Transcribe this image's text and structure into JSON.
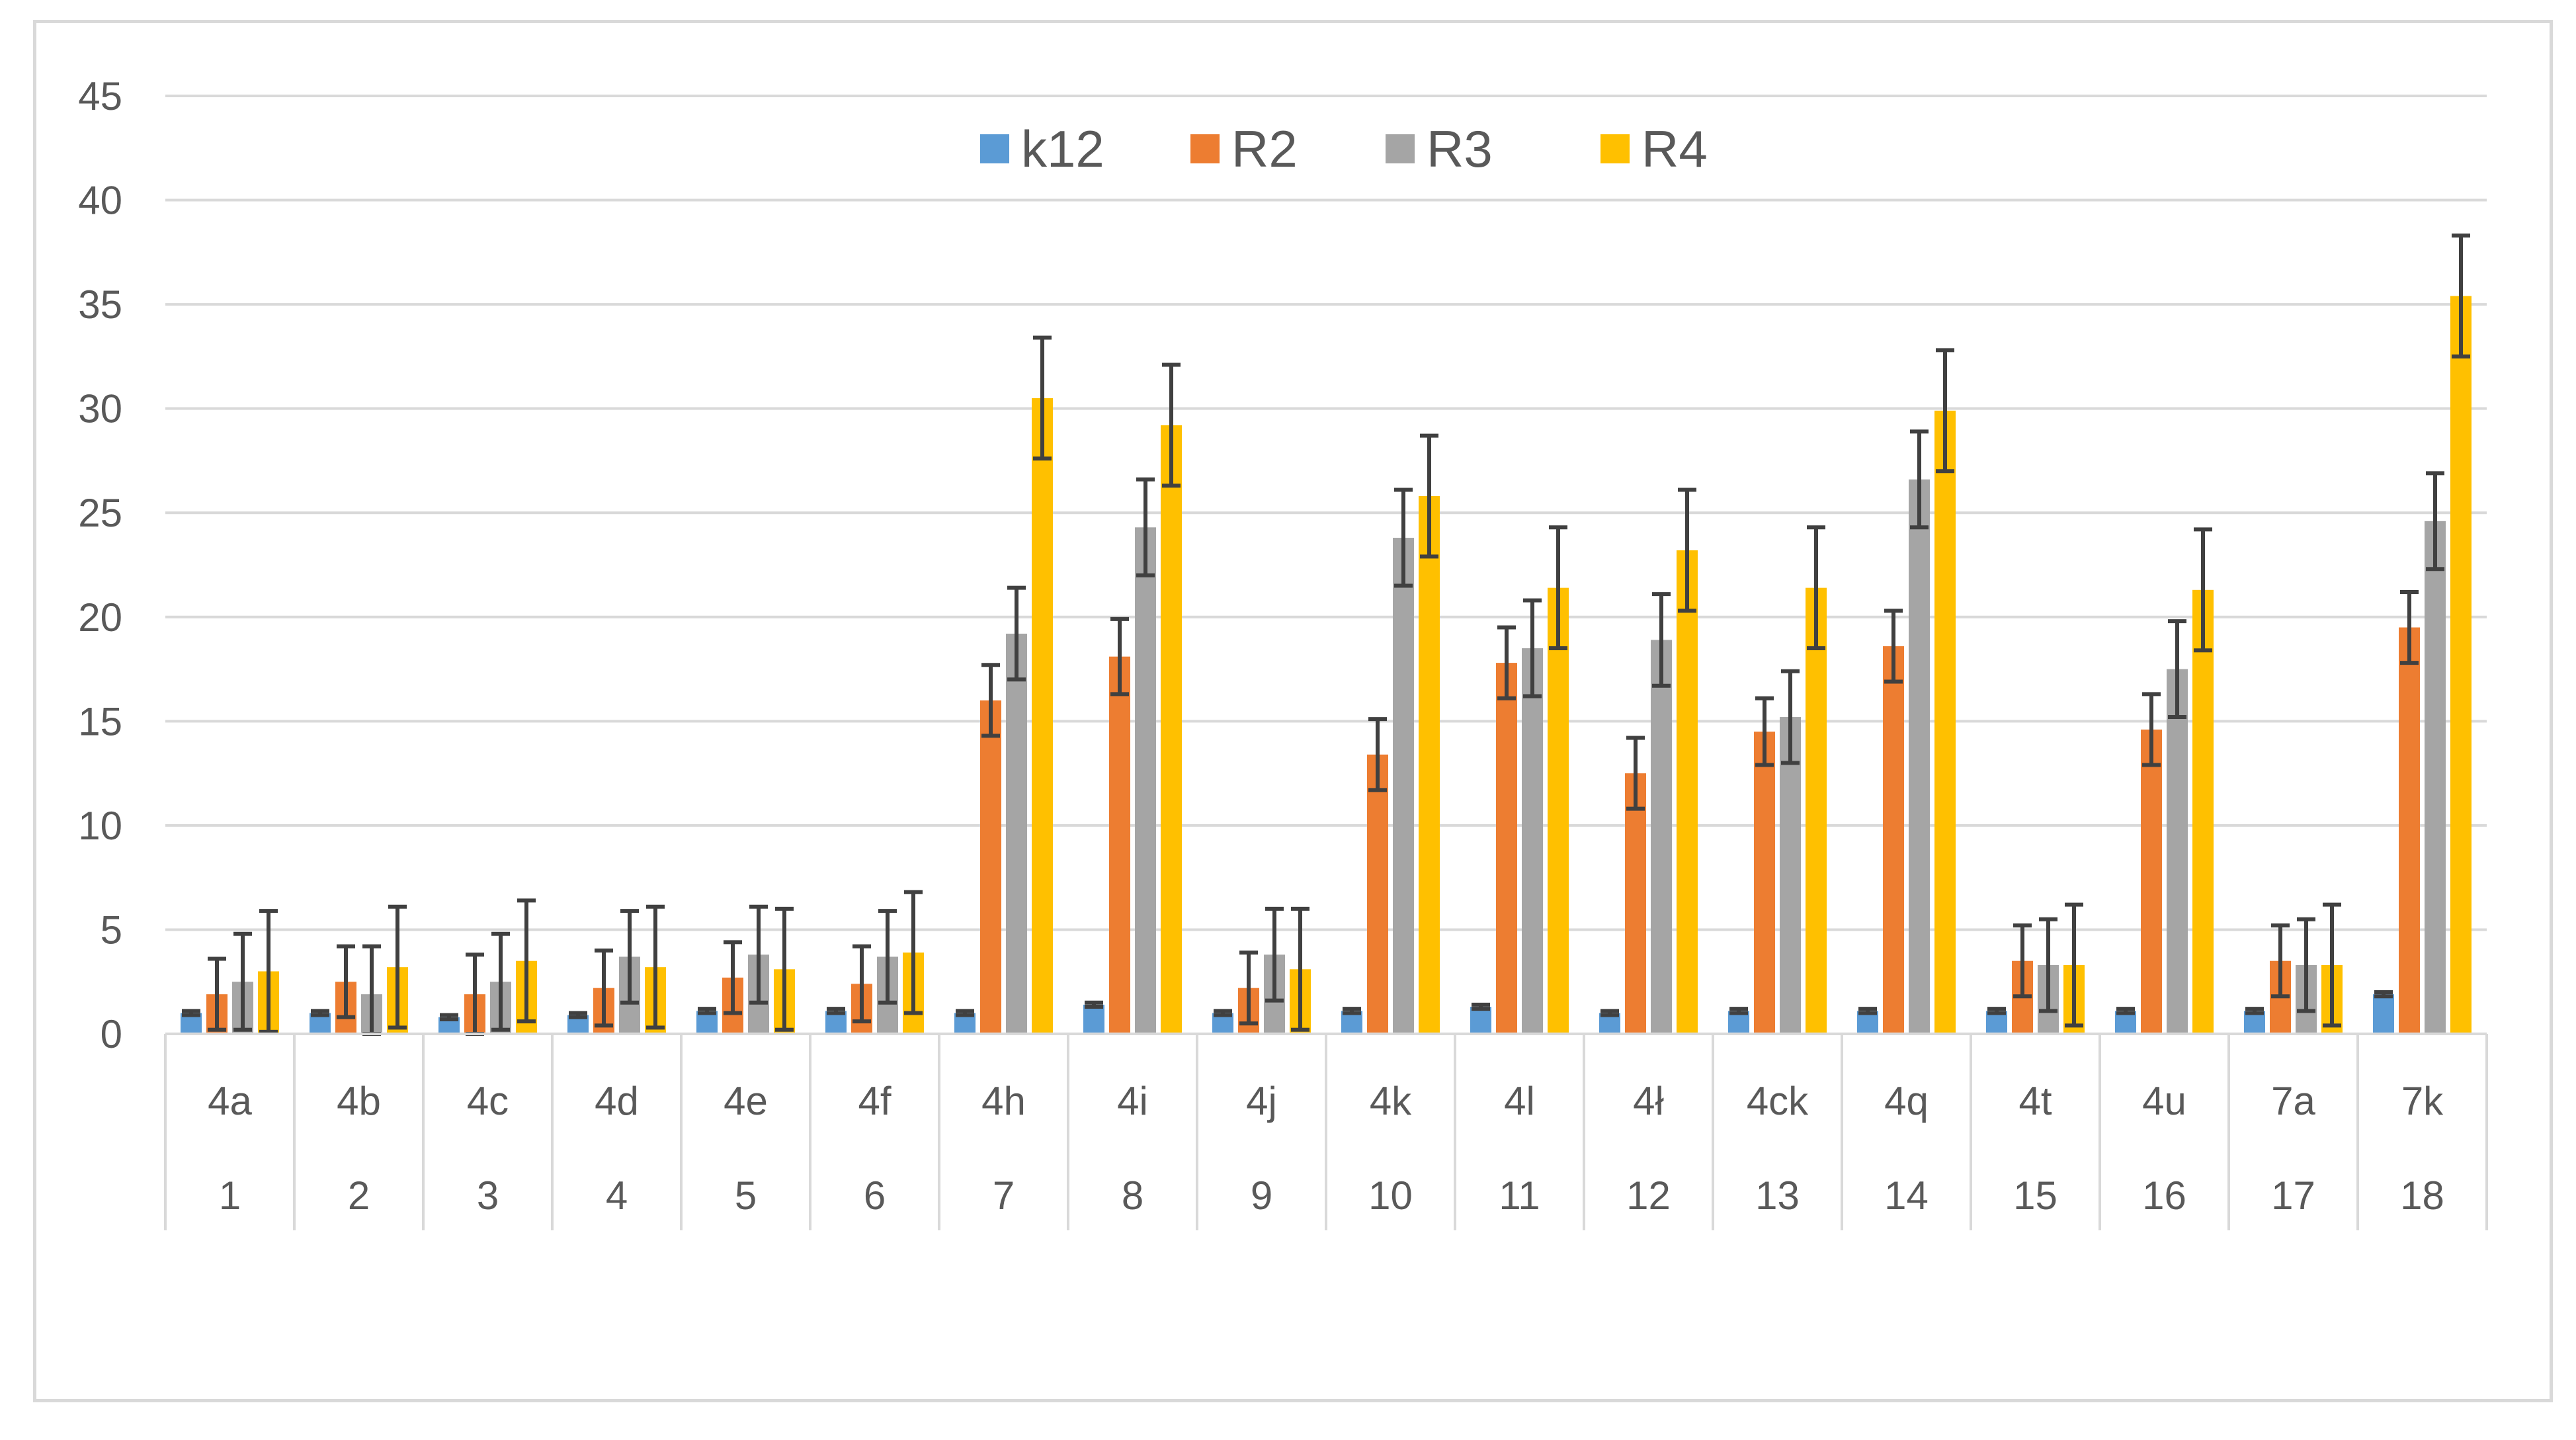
{
  "chart_data": {
    "type": "bar",
    "title": "",
    "xlabel": "",
    "ylabel": "",
    "ylim": [
      0,
      45
    ],
    "yticks": [
      0,
      5,
      10,
      15,
      20,
      25,
      30,
      35,
      40,
      45
    ],
    "grid": true,
    "legend_position": "top-center",
    "categories": [
      {
        "label": "4a",
        "index": "1"
      },
      {
        "label": "4b",
        "index": "2"
      },
      {
        "label": "4c",
        "index": "3"
      },
      {
        "label": "4d",
        "index": "4"
      },
      {
        "label": "4e",
        "index": "5"
      },
      {
        "label": "4f",
        "index": "6"
      },
      {
        "label": "4h",
        "index": "7"
      },
      {
        "label": "4i",
        "index": "8"
      },
      {
        "label": "4j",
        "index": "9"
      },
      {
        "label": "4k",
        "index": "10"
      },
      {
        "label": "4l",
        "index": "11"
      },
      {
        "label": "4ł",
        "index": "12"
      },
      {
        "label": "4ck",
        "index": "13"
      },
      {
        "label": "4q",
        "index": "14"
      },
      {
        "label": "4t",
        "index": "15"
      },
      {
        "label": "4u",
        "index": "16"
      },
      {
        "label": "7a",
        "index": "17"
      },
      {
        "label": "7k",
        "index": "18"
      }
    ],
    "series": [
      {
        "name": "k12",
        "color": "#5b9bd5",
        "values": [
          1.0,
          1.0,
          0.8,
          0.9,
          1.1,
          1.1,
          1.0,
          1.4,
          1.0,
          1.1,
          1.3,
          1.0,
          1.1,
          1.1,
          1.1,
          1.1,
          1.1,
          1.9
        ],
        "errors": [
          0.1,
          0.1,
          0.1,
          0.1,
          0.1,
          0.1,
          0.1,
          0.1,
          0.1,
          0.1,
          0.1,
          0.1,
          0.1,
          0.1,
          0.1,
          0.1,
          0.1,
          0.1
        ]
      },
      {
        "name": "R2",
        "color": "#ed7d31",
        "values": [
          1.9,
          2.5,
          1.9,
          2.2,
          2.7,
          2.4,
          16.0,
          18.1,
          2.2,
          13.4,
          17.8,
          12.5,
          14.5,
          18.6,
          3.5,
          14.6,
          3.5,
          19.5
        ],
        "errors": [
          1.7,
          1.7,
          1.9,
          1.8,
          1.7,
          1.8,
          1.7,
          1.8,
          1.7,
          1.7,
          1.7,
          1.7,
          1.6,
          1.7,
          1.7,
          1.7,
          1.7,
          1.7
        ]
      },
      {
        "name": "R3",
        "color": "#a5a5a5",
        "values": [
          2.5,
          1.9,
          2.5,
          3.7,
          3.8,
          3.7,
          19.2,
          24.3,
          3.8,
          23.8,
          18.5,
          18.9,
          15.2,
          26.6,
          3.3,
          17.5,
          3.3,
          24.6
        ],
        "errors": [
          2.3,
          2.3,
          2.3,
          2.2,
          2.3,
          2.2,
          2.2,
          2.3,
          2.2,
          2.3,
          2.3,
          2.2,
          2.2,
          2.3,
          2.2,
          2.3,
          2.2,
          2.3
        ]
      },
      {
        "name": "R4",
        "color": "#ffc000",
        "values": [
          3.0,
          3.2,
          3.5,
          3.2,
          3.1,
          3.9,
          30.5,
          29.2,
          3.1,
          25.8,
          21.4,
          23.2,
          21.4,
          29.9,
          3.3,
          21.3,
          3.3,
          35.4
        ],
        "errors": [
          2.9,
          2.9,
          2.9,
          2.9,
          2.9,
          2.9,
          2.9,
          2.9,
          2.9,
          2.9,
          2.9,
          2.9,
          2.9,
          2.9,
          2.9,
          2.9,
          2.9,
          2.9
        ]
      }
    ]
  },
  "style": {
    "grid_color": "#d9d9d9",
    "axis_color": "#d9d9d9",
    "error_bar_color": "#404040",
    "text_color": "#595959"
  }
}
